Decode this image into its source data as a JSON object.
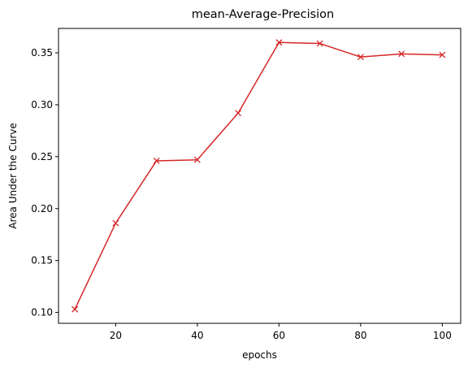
{
  "chart_data": {
    "type": "line",
    "title": "mean-Average-Precision",
    "xlabel": "epochs",
    "ylabel": "Area Under the Curve",
    "xlim": [
      6,
      104.5
    ],
    "ylim": [
      0.0895,
      0.3735
    ],
    "xticks": [
      20,
      40,
      60,
      80,
      100
    ],
    "yticks": [
      0.1,
      0.15,
      0.2,
      0.25,
      0.3,
      0.35
    ],
    "grid": false,
    "legend": null,
    "series": [
      {
        "color": "#d62728",
        "marker": "x",
        "x": [
          10,
          20,
          30,
          40,
          50,
          60,
          70,
          80,
          90,
          100
        ],
        "y": [
          0.103,
          0.186,
          0.246,
          0.247,
          0.292,
          0.36,
          0.359,
          0.346,
          0.349,
          0.348
        ]
      }
    ]
  }
}
